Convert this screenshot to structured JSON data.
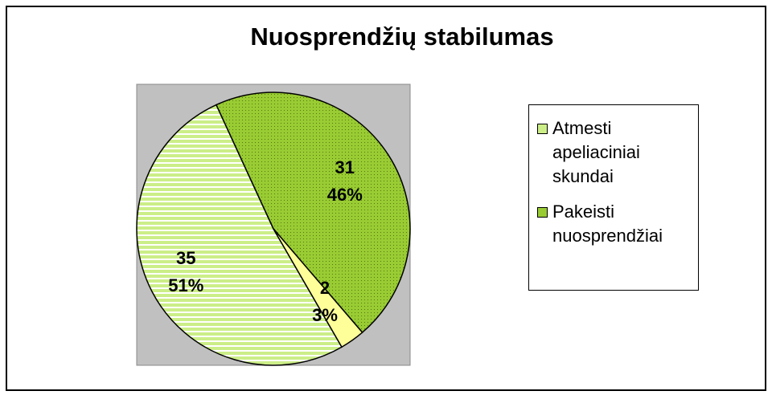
{
  "chart_data": {
    "type": "pie",
    "title": "Nuosprendžių stabilumas",
    "categories": [
      "Atmesti apeliaciniai skundai",
      "Pakeisti nuosprendžiai",
      null
    ],
    "values": [
      35,
      31,
      2
    ],
    "percentages": [
      51,
      46,
      3
    ],
    "percentage_labels": [
      "51%",
      "46%",
      "3%"
    ],
    "colors": [
      "#ccee88",
      "#99cc33",
      "#ffff99"
    ],
    "legend": "right"
  }
}
